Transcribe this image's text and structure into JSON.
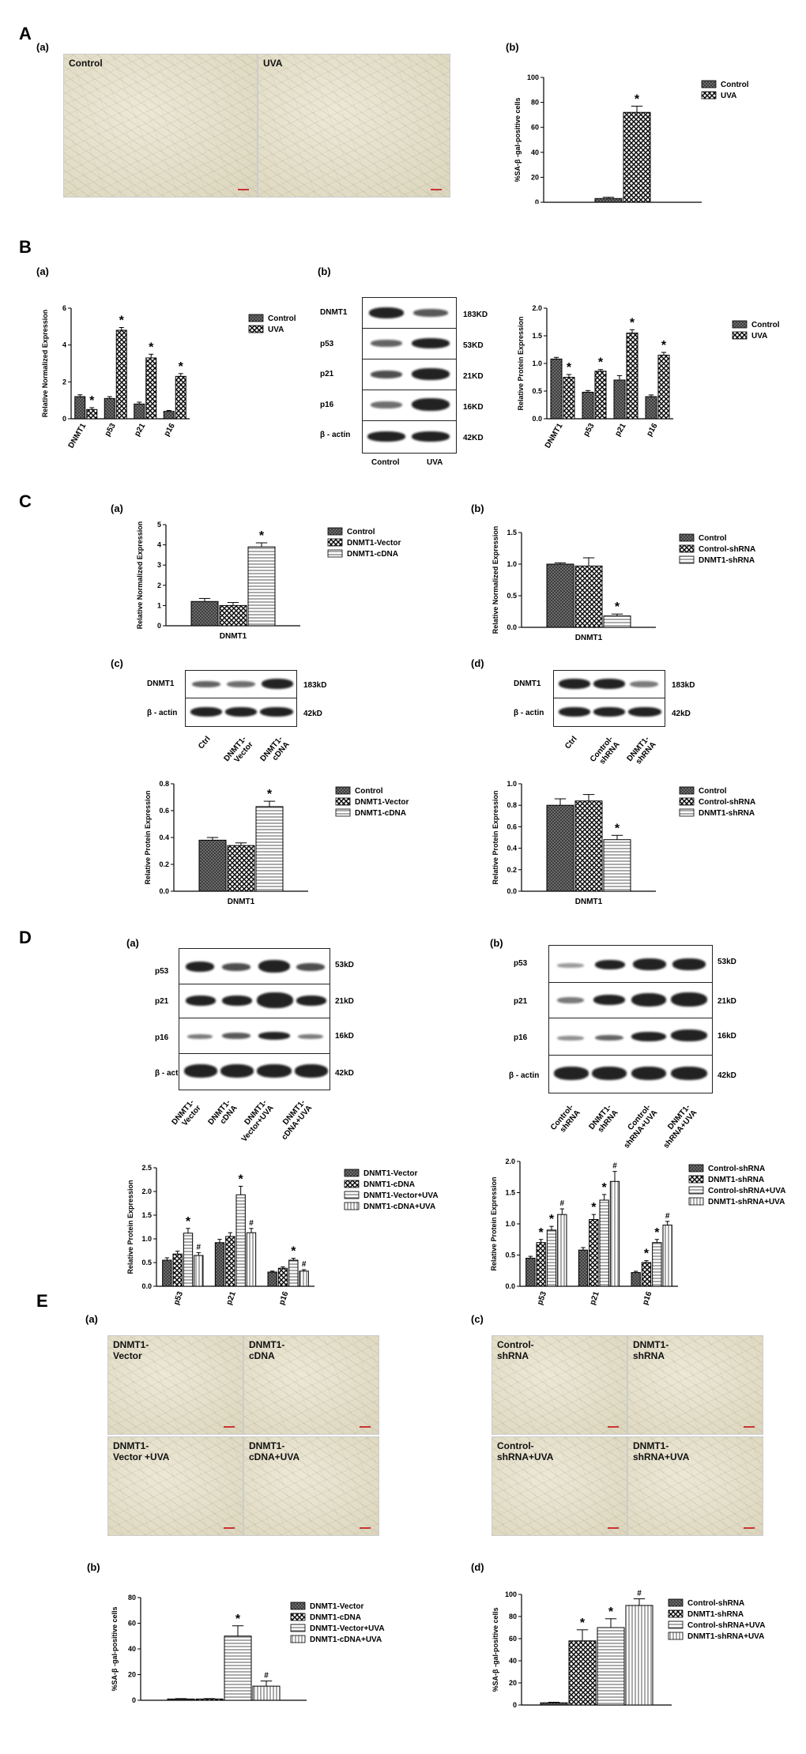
{
  "panels": {
    "A": "A",
    "B": "B",
    "C": "C",
    "D": "D",
    "E": "E",
    "a": "(a)",
    "b": "(b)",
    "c": "(c)",
    "d": "(d)"
  },
  "A": {
    "img_labels": [
      "Control",
      "UVA"
    ]
  },
  "B": {
    "blot_kd": [
      "183KD",
      "53KD",
      "21KD",
      "16KD",
      "42KD"
    ],
    "blot_labels": [
      "DNMT1",
      "p53",
      "p21",
      "p16",
      "β - actin"
    ],
    "blot_lanes": [
      "Control",
      "UVA"
    ]
  },
  "C": {
    "blot_c_labels": [
      "DNMT1",
      "β - actin"
    ],
    "blot_c_kd": [
      "183kD",
      "42kD"
    ],
    "blot_c_lanes": [
      "Ctrl",
      "DNMT1-\nVector",
      "DNMT1-\ncDNA"
    ],
    "blot_d_lanes": [
      "Ctrl",
      "Control-\nshRNA",
      "DNMT1-\nshRNA"
    ]
  },
  "D": {
    "blot_labels": [
      "p53",
      "p21",
      "p16",
      "β - actin"
    ],
    "blot_kd": [
      "53kD",
      "21kD",
      "16kD",
      "42kD"
    ],
    "blot_a_lanes": [
      "DNMT1-\nVector",
      "DNMT1-\ncDNA",
      "DNMT1-\nVector+UVA",
      "DNMT1-\ncDNA+UVA"
    ],
    "blot_b_lanes": [
      "Control-\nshRNA",
      "DNMT1-\nshRNA",
      "Control-\nshRNA+UVA",
      "DNMT1-\nshRNA+UVA"
    ]
  },
  "E": {
    "img_a": [
      "DNMT1-\nVector",
      "DNMT1-\ncDNA",
      "DNMT1-\nVector +UVA",
      "DNMT1-\ncDNA+UVA"
    ],
    "img_c": [
      "Control-\nshRNA",
      "DNMT1-\nshRNA",
      "Control-\nshRNA+UVA",
      "DNMT1-\nshRNA+UVA"
    ]
  },
  "chart_data": [
    {
      "id": "Ab",
      "type": "bar",
      "categories": [
        ""
      ],
      "series": [
        {
          "name": "Control",
          "values": [
            3
          ],
          "err": [
            1
          ]
        },
        {
          "name": "UVA",
          "values": [
            72
          ],
          "err": [
            5
          ]
        }
      ],
      "ylabel": "%SA-β -gal-positive cells",
      "ylim": [
        0,
        100
      ],
      "ticks": [
        0,
        20,
        40,
        60,
        80,
        100
      ],
      "marks": [
        "",
        "*"
      ],
      "legend": "right"
    },
    {
      "id": "Ba",
      "type": "bar",
      "categories": [
        "DNMT1",
        "p53",
        "p21",
        "p16"
      ],
      "series": [
        {
          "name": "Control",
          "values": [
            1.2,
            1.1,
            0.8,
            0.4
          ],
          "err": [
            0.1,
            0.1,
            0.1,
            0.05
          ]
        },
        {
          "name": "UVA",
          "values": [
            0.5,
            4.8,
            3.3,
            2.3
          ],
          "err": [
            0.1,
            0.15,
            0.2,
            0.15
          ]
        }
      ],
      "ylabel": "Relative Normalized Expression",
      "ylim": [
        0,
        6
      ],
      "ticks": [
        0,
        2,
        4,
        6
      ],
      "marks": [
        "*",
        "*",
        "*",
        "*"
      ],
      "legend": "right"
    },
    {
      "id": "Bb",
      "type": "bar",
      "categories": [
        "DNMT1",
        "p53",
        "p21",
        "p16"
      ],
      "series": [
        {
          "name": "Control",
          "values": [
            1.08,
            0.48,
            0.7,
            0.4
          ],
          "err": [
            0.03,
            0.03,
            0.08,
            0.03
          ]
        },
        {
          "name": "UVA",
          "values": [
            0.75,
            0.86,
            1.55,
            1.15
          ],
          "err": [
            0.05,
            0.03,
            0.06,
            0.05
          ]
        }
      ],
      "ylabel": "Relative Protein Expression",
      "ylim": [
        0,
        2.0
      ],
      "ticks": [
        0.0,
        0.5,
        1.0,
        1.5,
        2.0
      ],
      "marks": [
        "*",
        "*",
        "*",
        "*"
      ],
      "legend": "right"
    },
    {
      "id": "Ca",
      "type": "bar",
      "categories": [
        "DNMT1"
      ],
      "series": [
        {
          "name": "Control",
          "values": [
            1.2
          ],
          "err": [
            0.15
          ]
        },
        {
          "name": "DNMT1-Vector",
          "values": [
            1.0
          ],
          "err": [
            0.15
          ]
        },
        {
          "name": "DNMT1-cDNA",
          "values": [
            3.9
          ],
          "err": [
            0.2
          ]
        }
      ],
      "ylabel": "Relative Normalized Expression",
      "ylim": [
        0,
        5
      ],
      "ticks": [
        0,
        1,
        2,
        3,
        4,
        5
      ],
      "marks": [
        "",
        "",
        "*"
      ],
      "legend": "right"
    },
    {
      "id": "Cb",
      "type": "bar",
      "categories": [
        "DNMT1"
      ],
      "series": [
        {
          "name": "Control",
          "values": [
            1.0
          ],
          "err": [
            0.02
          ]
        },
        {
          "name": "Control-shRNA",
          "values": [
            0.97
          ],
          "err": [
            0.13
          ]
        },
        {
          "name": "DNMT1-shRNA",
          "values": [
            0.18
          ],
          "err": [
            0.03
          ]
        }
      ],
      "ylabel": "Relative Normalized Expression",
      "ylim": [
        0,
        1.5
      ],
      "ticks": [
        0.0,
        0.5,
        1.0,
        1.5
      ],
      "marks": [
        "",
        "",
        "*"
      ],
      "legend": "right"
    },
    {
      "id": "Cc",
      "type": "bar",
      "categories": [
        "DNMT1"
      ],
      "series": [
        {
          "name": "Control",
          "values": [
            0.38
          ],
          "err": [
            0.02
          ]
        },
        {
          "name": "DNMT1-Vector",
          "values": [
            0.34
          ],
          "err": [
            0.02
          ]
        },
        {
          "name": "DNMT1-cDNA",
          "values": [
            0.63
          ],
          "err": [
            0.04
          ]
        }
      ],
      "ylabel": "Relative Protein Expression",
      "ylim": [
        0,
        0.8
      ],
      "ticks": [
        0.0,
        0.2,
        0.4,
        0.6,
        0.8
      ],
      "marks": [
        "",
        "",
        "*"
      ],
      "legend": "right"
    },
    {
      "id": "Cd",
      "type": "bar",
      "categories": [
        "DNMT1"
      ],
      "series": [
        {
          "name": "Control",
          "values": [
            0.8
          ],
          "err": [
            0.06
          ]
        },
        {
          "name": "Control-shRNA",
          "values": [
            0.84
          ],
          "err": [
            0.06
          ]
        },
        {
          "name": "DNMT1-shRNA",
          "values": [
            0.48
          ],
          "err": [
            0.04
          ]
        }
      ],
      "ylabel": "Relative Protein Expression",
      "ylim": [
        0,
        1.0
      ],
      "ticks": [
        0.0,
        0.2,
        0.4,
        0.6,
        0.8,
        1.0
      ],
      "marks": [
        "",
        "",
        "*"
      ],
      "legend": "right"
    },
    {
      "id": "Da",
      "type": "bar",
      "categories": [
        "p53",
        "p21",
        "p16"
      ],
      "series": [
        {
          "name": "DNMT1-Vector",
          "values": [
            0.55,
            0.92,
            0.3
          ],
          "err": [
            0.05,
            0.07,
            0.02
          ]
        },
        {
          "name": "DNMT1-cDNA",
          "values": [
            0.68,
            1.05,
            0.38
          ],
          "err": [
            0.06,
            0.08,
            0.03
          ]
        },
        {
          "name": "DNMT1-Vector+UVA",
          "values": [
            1.12,
            1.93,
            0.55
          ],
          "err": [
            0.1,
            0.18,
            0.04
          ]
        },
        {
          "name": "DNMT1-cDNA+UVA",
          "values": [
            0.65,
            1.13,
            0.32
          ],
          "err": [
            0.06,
            0.09,
            0.03
          ]
        }
      ],
      "ylabel": "Relative Protein Expression",
      "ylim": [
        0,
        2.5
      ],
      "ticks": [
        0.0,
        0.5,
        1.0,
        1.5,
        2.0,
        2.5
      ],
      "marks": [
        [
          "",
          "",
          "*",
          "#"
        ],
        [
          "",
          "",
          "*",
          "#"
        ],
        [
          "",
          "",
          "*",
          "#"
        ]
      ],
      "legend": "right"
    },
    {
      "id": "Db",
      "type": "bar",
      "categories": [
        "p53",
        "p21",
        "p16"
      ],
      "series": [
        {
          "name": "Control-shRNA",
          "values": [
            0.45,
            0.58,
            0.22
          ],
          "err": [
            0.03,
            0.04,
            0.02
          ]
        },
        {
          "name": "DNMT1-shRNA",
          "values": [
            0.7,
            1.07,
            0.38
          ],
          "err": [
            0.05,
            0.08,
            0.03
          ]
        },
        {
          "name": "Control-shRNA+UVA",
          "values": [
            0.9,
            1.38,
            0.7
          ],
          "err": [
            0.06,
            0.09,
            0.05
          ]
        },
        {
          "name": "DNMT1-shRNA+UVA",
          "values": [
            1.15,
            1.68,
            0.98
          ],
          "err": [
            0.09,
            0.16,
            0.06
          ]
        }
      ],
      "ylabel": "Relative Protein Expression",
      "ylim": [
        0,
        2.0
      ],
      "ticks": [
        0.0,
        0.5,
        1.0,
        1.5,
        2.0
      ],
      "marks": [
        [
          "",
          "*",
          "*",
          "#"
        ],
        [
          "",
          "*",
          "*",
          "#"
        ],
        [
          "",
          "*",
          "*",
          "#"
        ]
      ],
      "legend": "right"
    },
    {
      "id": "Eb",
      "type": "bar",
      "categories": [
        ""
      ],
      "series": [
        {
          "name": "DNMT1-Vector",
          "values": [
            1
          ],
          "err": [
            0.3
          ]
        },
        {
          "name": "DNMT1-cDNA",
          "values": [
            1
          ],
          "err": [
            0.3
          ]
        },
        {
          "name": "DNMT1-Vector+UVA",
          "values": [
            50
          ],
          "err": [
            8
          ]
        },
        {
          "name": "DNMT1-cDNA+UVA",
          "values": [
            11
          ],
          "err": [
            4
          ]
        }
      ],
      "ylabel": "%SA-β -gal-positive cells",
      "ylim": [
        0,
        80
      ],
      "ticks": [
        0,
        20,
        40,
        60,
        80
      ],
      "marks": [
        "",
        "",
        "*",
        "#"
      ],
      "legend": "right"
    },
    {
      "id": "Ed",
      "type": "bar",
      "categories": [
        ""
      ],
      "series": [
        {
          "name": "Control-shRNA",
          "values": [
            2
          ],
          "err": [
            0.5
          ]
        },
        {
          "name": "DNMT1-shRNA",
          "values": [
            58
          ],
          "err": [
            10
          ]
        },
        {
          "name": "Control-shRNA+UVA",
          "values": [
            70
          ],
          "err": [
            8
          ]
        },
        {
          "name": "DNMT1-shRNA+UVA",
          "values": [
            90
          ],
          "err": [
            6
          ]
        }
      ],
      "ylabel": "%SA-β -gal-positive cells",
      "ylim": [
        0,
        100
      ],
      "ticks": [
        0,
        20,
        40,
        60,
        80,
        100
      ],
      "marks": [
        "",
        "*",
        "*",
        "#"
      ],
      "legend": "right"
    }
  ]
}
